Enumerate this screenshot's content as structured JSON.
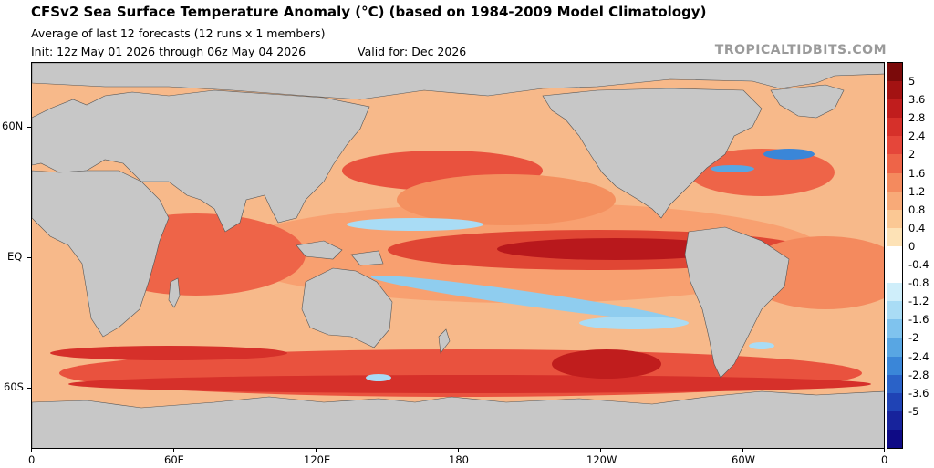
{
  "header": {
    "title": "CFSv2 Sea Surface Temperature Anomaly (°C) (based on 1984-2009 Model Climatology)",
    "subtitle": "Average of last 12 forecasts (12 runs x 1 members)",
    "init": "Init: 12z May 01 2026 through 06z May 04 2026",
    "valid": "Valid for: Dec 2026",
    "brand": "TROPICALTIDBITS.COM"
  },
  "axes": {
    "y_labels": [
      "60N",
      "EQ",
      "60S"
    ],
    "x_labels": [
      "0",
      "60E",
      "120E",
      "180",
      "120W",
      "60W",
      "0"
    ]
  },
  "colorbar": {
    "labels": [
      "5",
      "3.6",
      "2.8",
      "2.4",
      "2",
      "1.6",
      "1.2",
      "0.8",
      "0.4",
      "0",
      "-0.4",
      "-0.8",
      "-1.2",
      "-1.6",
      "-2",
      "-2.4",
      "-2.8",
      "-3.6",
      "-5"
    ],
    "colors": [
      "#7a0a0a",
      "#a31212",
      "#c01d1d",
      "#d6302a",
      "#e5463a",
      "#ee6448",
      "#f48a5e",
      "#f8aa78",
      "#fbc894",
      "#fde2b6",
      "#ffffff",
      "#ffffff",
      "#cfeefa",
      "#a9dcf5",
      "#7fc3ee",
      "#58a6e3",
      "#3a86d8",
      "#2a62c8",
      "#1f43b5",
      "#17239c",
      "#0e0a85"
    ]
  },
  "map": {
    "land_color": "#c7c7c7",
    "ocean_base_color": "#f7b98a",
    "warm_anomaly_color": "#d9342b",
    "strong_warm_color": "#a9151a",
    "cool_anomaly_color": "#8fcdef"
  }
}
